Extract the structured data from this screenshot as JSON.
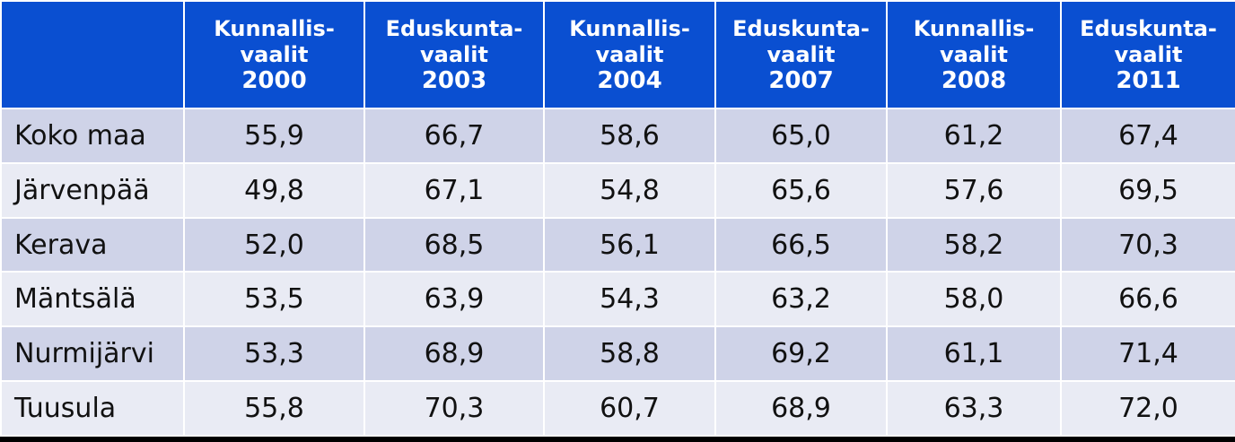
{
  "table": {
    "columns": [
      {
        "line1": "Kunnallis-",
        "line2": "vaalit",
        "year": "2000"
      },
      {
        "line1": "Eduskunta-",
        "line2": "vaalit",
        "year": "2003"
      },
      {
        "line1": "Kunnallis-",
        "line2": "vaalit",
        "year": "2004"
      },
      {
        "line1": "Eduskunta-",
        "line2": "vaalit",
        "year": "2007"
      },
      {
        "line1": "Kunnallis-",
        "line2": "vaalit",
        "year": "2008"
      },
      {
        "line1": "Eduskunta-",
        "line2": "vaalit",
        "year": "2011"
      }
    ],
    "rows": [
      {
        "name": "Koko maa",
        "values": [
          "55,9",
          "66,7",
          "58,6",
          "65,0",
          "61,2",
          "67,4"
        ]
      },
      {
        "name": "Järvenpää",
        "values": [
          "49,8",
          "67,1",
          "54,8",
          "65,6",
          "57,6",
          "69,5"
        ]
      },
      {
        "name": "Kerava",
        "values": [
          "52,0",
          "68,5",
          "56,1",
          "66,5",
          "58,2",
          "70,3"
        ]
      },
      {
        "name": "Mäntsälä",
        "values": [
          "53,5",
          "63,9",
          "54,3",
          "63,2",
          "58,0",
          "66,6"
        ]
      },
      {
        "name": "Nurmijärvi",
        "values": [
          "53,3",
          "68,9",
          "58,8",
          "69,2",
          "61,1",
          "71,4"
        ]
      },
      {
        "name": "Tuusula",
        "values": [
          "55,8",
          "70,3",
          "60,7",
          "68,9",
          "63,3",
          "72,0"
        ]
      }
    ]
  },
  "colors": {
    "header_bg": "#0a4fd1",
    "row_odd_bg": "#cfd3e8",
    "row_even_bg": "#e9ebf4",
    "frame": "#000000"
  }
}
